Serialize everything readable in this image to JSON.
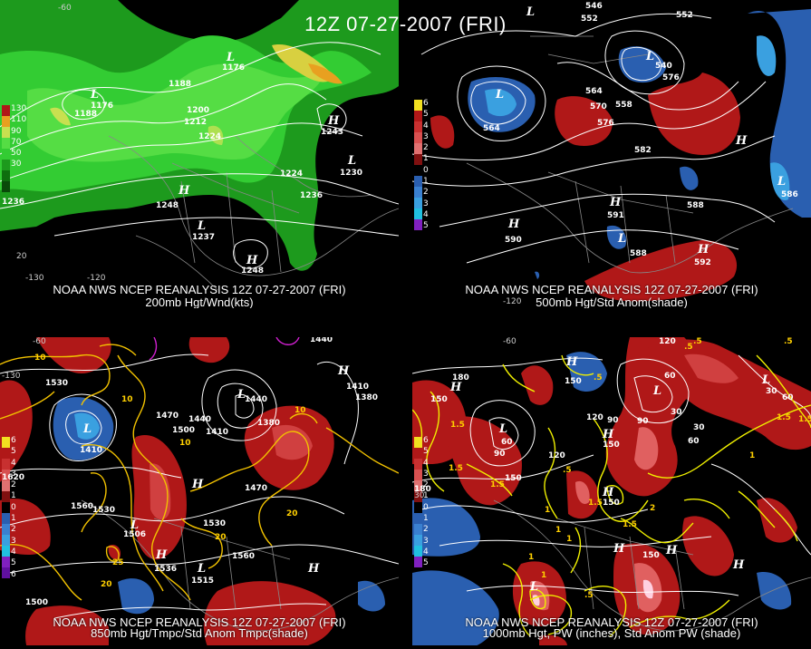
{
  "title": "12Z 07-27-2007 (FRI)",
  "colors": {
    "background": "#000000",
    "wind_green": "#22bb22",
    "positive_anom": "#b01818",
    "negative_anom": "#2a5fb0",
    "contour_white": "#ffffff",
    "temp_yellow": "#f2c200",
    "pw_yellow": "#f5f000"
  },
  "panels": [
    {
      "id": "tl",
      "source": "NOAA NWS NCEP REANALYSIS 12Z 07-27-2007 (FRI)",
      "field": "200mb Hgt/Wnd(kts)",
      "legend": [
        "130",
        "110",
        "90",
        "70",
        "50",
        "30"
      ],
      "height_labels": [
        "1176",
        "1188",
        "1176",
        "1188",
        "1200",
        "1212",
        "1224",
        "1224",
        "1236",
        "1236",
        "1248",
        "1248",
        "1230",
        "1243",
        "1237"
      ],
      "axis_labels": [
        "-60",
        "-130",
        "-120",
        "20"
      ]
    },
    {
      "id": "tr",
      "source": "NOAA NWS NCEP REANALYSIS 12Z 07-27-2007 (FRI)",
      "field": "500mb Hgt/Std Anom(shade)",
      "legend": [
        "6",
        "5",
        "4",
        "3",
        "2",
        "1",
        "0",
        "1",
        "2",
        "3",
        "4",
        "5"
      ],
      "height_labels": [
        "546",
        "552",
        "552",
        "558",
        "564",
        "564",
        "570",
        "576",
        "576",
        "582",
        "588",
        "588",
        "540",
        "590",
        "591",
        "592",
        "586"
      ],
      "axis_labels": [
        "-120"
      ]
    },
    {
      "id": "bl",
      "source": "NOAA NWS NCEP REANALYSIS 12Z 07-27-2007 (FRI)",
      "field": "850mb Hgt/Tmpc/Std Anom Tmpc(shade)",
      "legend": [
        "6",
        "5",
        "4",
        "3",
        "2",
        "1",
        "0",
        "1",
        "2",
        "3",
        "4",
        "5",
        "6"
      ],
      "height_labels": [
        "1440",
        "1530",
        "1410",
        "1470",
        "1440",
        "1410",
        "1380",
        "1500",
        "1380",
        "1410",
        "1440",
        "1470",
        "1620",
        "1560",
        "1530",
        "1530",
        "1560",
        "1500",
        "1506",
        "1536",
        "1515"
      ],
      "temp_labels": [
        "10",
        "10",
        "10",
        "20",
        "20",
        "25",
        "20",
        "10"
      ],
      "axis_labels": [
        "-60",
        "-130"
      ]
    },
    {
      "id": "br",
      "source": "NOAA NWS NCEP REANALYSIS 12Z 07-27-2007 (FRI)",
      "field": "1000mb Hgt, PW (inches), Std Anom PW (shade)",
      "legend": [
        "6",
        "5",
        "4",
        "3",
        "2",
        "1",
        "0",
        "1",
        "2",
        "3",
        "4",
        "5"
      ],
      "height_labels": [
        "120",
        "180",
        "150",
        "90",
        "60",
        "90",
        "150",
        "120",
        "90",
        "150",
        "120",
        "150",
        "60",
        "30",
        "60",
        "30",
        "150",
        "180",
        "150",
        "30",
        "60"
      ],
      "pw_labels": [
        "1.5",
        "1.5",
        ".5",
        "1",
        "1.5",
        "1.5",
        "1.5",
        "2",
        "1.5",
        ".5",
        "1",
        "1.5",
        "1",
        "1",
        ".5",
        ".5",
        ".5",
        "1",
        ".5",
        "1"
      ],
      "axis_labels": [
        "-60",
        "30"
      ]
    }
  ]
}
